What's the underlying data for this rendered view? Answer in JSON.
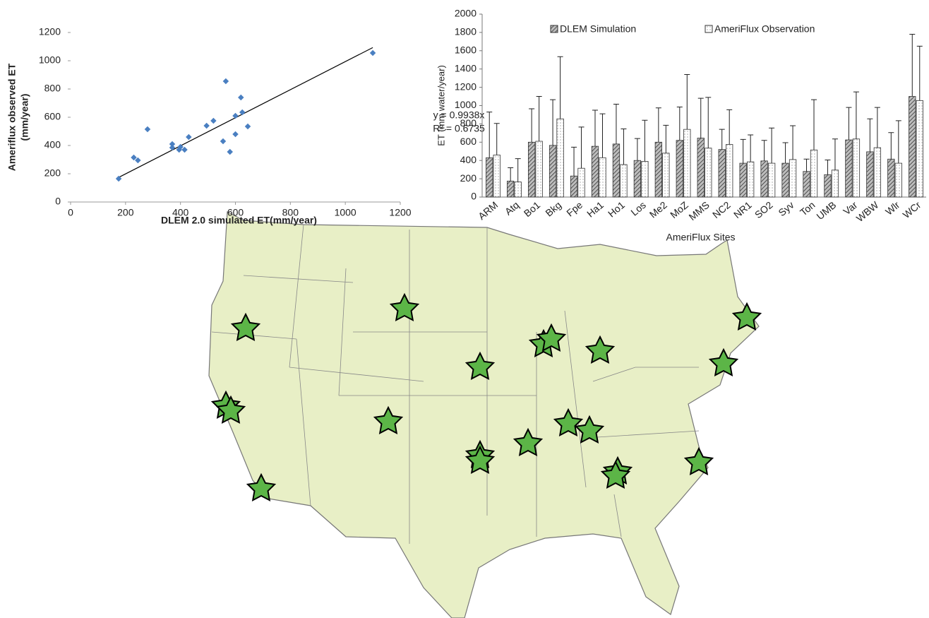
{
  "chart_data": [
    {
      "type": "scatter",
      "xlabel": "DLEM 2.0 simulated ET(mm/year)",
      "ylabel_lines": [
        "Ameriflux observed ET",
        "(mm/year)"
      ],
      "annotations": [
        "y = 0.9938x",
        "R² = 0.6735"
      ],
      "color": "#4a7fc1",
      "x": [
        430,
        175,
        600,
        565,
        230,
        555,
        580,
        400,
        600,
        620,
        645,
        520,
        370,
        395,
        370,
        280,
        245,
        625,
        495,
        415,
        1100
      ],
      "y": [
        460,
        165,
        610,
        855,
        315,
        430,
        355,
        390,
        480,
        740,
        535,
        575,
        385,
        370,
        410,
        515,
        295,
        635,
        540,
        370,
        1055
      ],
      "trendline": {
        "slope": 0.9938,
        "x": [
          175,
          1100
        ]
      },
      "xlim": [
        0,
        1200
      ],
      "xticks": [
        0,
        200,
        400,
        600,
        800,
        1000,
        1200
      ],
      "ylim": [
        0,
        1200
      ],
      "yticks": [
        0,
        200,
        400,
        600,
        800,
        1000,
        1200
      ]
    },
    {
      "type": "bar",
      "xlabel": "AmeriFlux Sites",
      "ylabel": "ET (mm water/year)",
      "categories": [
        "ARM",
        "Atq",
        "Bo1",
        "Bkg",
        "Fpe",
        "Ha1",
        "Ho1",
        "Los",
        "Me2",
        "MoZ",
        "MMS",
        "NC2",
        "NR1",
        "SO2",
        "Syv",
        "Ton",
        "UMB",
        "Var",
        "WBW",
        "Wlr",
        "WCr"
      ],
      "series": [
        {
          "name": "DLEM Simulation",
          "color": "#8a8a8a",
          "pattern": "hatch",
          "values": [
            430,
            175,
            600,
            565,
            230,
            555,
            580,
            400,
            600,
            620,
            645,
            520,
            370,
            395,
            370,
            280,
            245,
            625,
            495,
            415,
            1100
          ],
          "errors": [
            500,
            145,
            365,
            500,
            315,
            395,
            435,
            240,
            375,
            365,
            435,
            220,
            260,
            225,
            225,
            135,
            160,
            355,
            360,
            290,
            680
          ]
        },
        {
          "name": "AmeriFlux Observation",
          "color": "#ffffff",
          "pattern": "dots",
          "values": [
            460,
            165,
            610,
            855,
            315,
            430,
            355,
            390,
            480,
            740,
            535,
            575,
            385,
            370,
            410,
            515,
            295,
            635,
            540,
            370,
            1055
          ],
          "errors": [
            345,
            255,
            490,
            680,
            450,
            480,
            390,
            450,
            305,
            600,
            555,
            380,
            295,
            385,
            370,
            550,
            340,
            515,
            440,
            465,
            595
          ]
        }
      ],
      "ylim": [
        0,
        2000
      ],
      "yticks": [
        0,
        200,
        400,
        600,
        800,
        1000,
        1200,
        1400,
        1600,
        1800,
        2000
      ]
    }
  ]
}
